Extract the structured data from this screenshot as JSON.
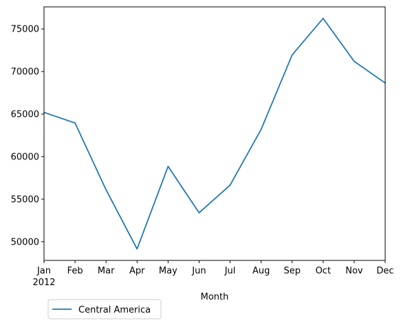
{
  "chart_data": {
    "type": "line",
    "xlabel": "Month",
    "ylabel": "",
    "categories": [
      "Jan",
      "Feb",
      "Mar",
      "Apr",
      "May",
      "Jun",
      "Jul",
      "Aug",
      "Sep",
      "Oct",
      "Nov",
      "Dec"
    ],
    "year_label": "2012",
    "ylim": [
      47800,
      77600
    ],
    "yticks": [
      50000,
      55000,
      60000,
      65000,
      70000,
      75000
    ],
    "ytick_labels": [
      "50000",
      "55000",
      "60000",
      "65000",
      "70000",
      "75000"
    ],
    "grid": false,
    "legend_position": "below-left",
    "series": [
      {
        "name": "Central America",
        "color": "#1f77b4",
        "values": [
          65200,
          63950,
          56100,
          49150,
          58850,
          53400,
          56650,
          63200,
          71950,
          76250,
          71200,
          68650
        ]
      }
    ]
  }
}
